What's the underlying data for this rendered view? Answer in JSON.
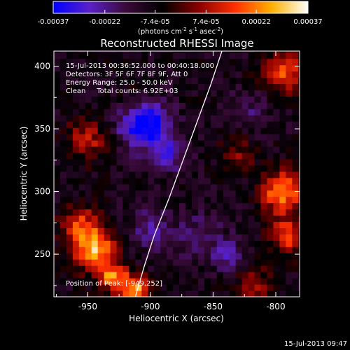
{
  "colorbar": {
    "tick_labels": [
      "-0.00037",
      "-0.00022",
      "-7.4e-05",
      "7.4e-05",
      "0.00022",
      "0.00037"
    ],
    "tick_values": [
      -0.00037,
      -0.00022,
      -7.4e-05,
      7.4e-05,
      0.00022,
      0.00037
    ],
    "range": [
      -0.00037,
      0.00037
    ],
    "unit_parts": [
      "(photons cm",
      "-2",
      " s",
      "-1",
      " asec",
      "-2",
      ")"
    ],
    "colors": [
      "#0000ff",
      "#5a20c8",
      "#3a0a3a",
      "#000000",
      "#8a0000",
      "#ff3000",
      "#ffb000",
      "#ffffff"
    ]
  },
  "info": {
    "time_range": "15-Jul-2013 00:36:52.000 to 00:40:18.000",
    "detectors": "Detectors: 3F 5F 6F 7F 8F 9F, Att 0",
    "energy": "Energy Range: 25.0 - 50.0 keV",
    "clean": "Clean     Total counts: 6.92E+03",
    "peak": "Position of Peak: [-949,252]"
  },
  "footer_timestamp": "15-Jul-2013 09:47",
  "chart_data": {
    "type": "heatmap",
    "title": "Reconstructed RHESSI Image",
    "xlabel": "Heliocentric X (arcsec)",
    "ylabel": "Heliocentric Y (arcsec)",
    "xlim": [
      -977,
      -781
    ],
    "ylim": [
      216,
      412
    ],
    "xticks": [
      -950,
      -900,
      -850,
      -800
    ],
    "yticks": [
      250,
      300,
      350,
      400
    ],
    "xtick_labels": [
      "-950",
      "-900",
      "-850",
      "-800"
    ],
    "ytick_labels": [
      "250",
      "300",
      "350",
      "400"
    ],
    "peak_position": [
      -949,
      252
    ],
    "limb_curve": [
      [
        -912,
        216
      ],
      [
        -905,
        240
      ],
      [
        -897,
        265
      ],
      [
        -885,
        295
      ],
      [
        -874,
        325
      ],
      [
        -863,
        355
      ],
      [
        -852,
        385
      ],
      [
        -843,
        412
      ]
    ],
    "sources": [
      {
        "x": -945,
        "y": 255,
        "amplitude": 0.00037,
        "sigma": 12
      },
      {
        "x": -930,
        "y": 232,
        "amplitude": 0.0003,
        "sigma": 8
      },
      {
        "x": -912,
        "y": 222,
        "amplitude": 0.00035,
        "sigma": 8
      },
      {
        "x": -957,
        "y": 275,
        "amplitude": 0.0002,
        "sigma": 10
      },
      {
        "x": -950,
        "y": 342,
        "amplitude": 0.00018,
        "sigma": 12
      },
      {
        "x": -910,
        "y": 372,
        "amplitude": 0.00012,
        "sigma": 10
      },
      {
        "x": -795,
        "y": 300,
        "amplitude": 0.00032,
        "sigma": 12
      },
      {
        "x": -790,
        "y": 265,
        "amplitude": 0.00025,
        "sigma": 10
      },
      {
        "x": -793,
        "y": 395,
        "amplitude": 0.00025,
        "sigma": 12
      },
      {
        "x": -815,
        "y": 225,
        "amplitude": 0.00015,
        "sigma": 10
      },
      {
        "x": -830,
        "y": 330,
        "amplitude": 0.00012,
        "sigma": 10
      },
      {
        "x": -905,
        "y": 355,
        "amplitude": -0.00035,
        "sigma": 14
      },
      {
        "x": -885,
        "y": 330,
        "amplitude": -0.00015,
        "sigma": 10
      },
      {
        "x": -860,
        "y": 265,
        "amplitude": -0.0001,
        "sigma": 14
      },
      {
        "x": -900,
        "y": 270,
        "amplitude": -0.00012,
        "sigma": 12
      },
      {
        "x": -838,
        "y": 250,
        "amplitude": -0.00015,
        "sigma": 8
      },
      {
        "x": -820,
        "y": 365,
        "amplitude": -8e-05,
        "sigma": 12
      }
    ]
  }
}
